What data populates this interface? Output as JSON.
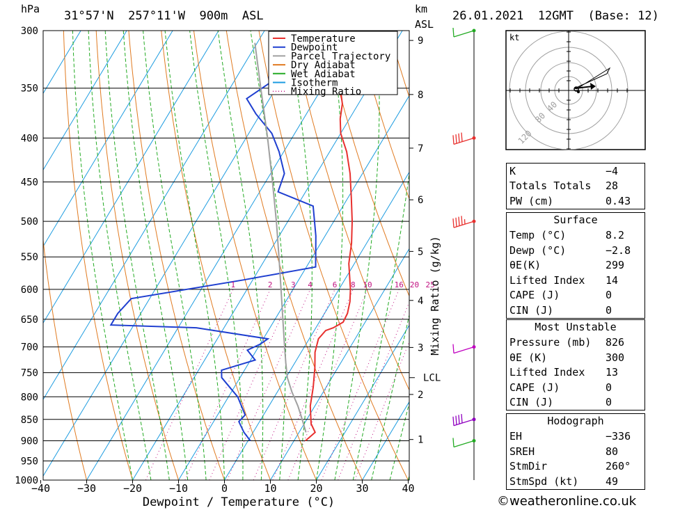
{
  "header": {
    "location": "31°57'N  257°11'W  900m  ASL",
    "datetime": "26.01.2021  12GMT  (Base: 12)",
    "hpa_label": "hPa",
    "km_label": "km",
    "asl_label": "ASL"
  },
  "chart_data": {
    "type": "skew-t",
    "xlabel": "Dewpoint / Temperature (°C)",
    "ylabel_right": "Mixing Ratio (g/kg)",
    "x_ticks": [
      -40,
      -30,
      -20,
      -10,
      0,
      10,
      20,
      30,
      40
    ],
    "x_tick_labels": [
      "−40",
      "−30",
      "−20",
      "−10",
      "0",
      "10",
      "20",
      "30",
      "40"
    ],
    "p_levels": [
      300,
      350,
      400,
      450,
      500,
      550,
      600,
      650,
      700,
      750,
      800,
      850,
      900,
      950,
      1000
    ],
    "km_ticks": [
      {
        "km": 1,
        "p": 897
      },
      {
        "km": 2,
        "p": 795
      },
      {
        "km": 3,
        "p": 701
      },
      {
        "km": 4,
        "p": 618
      },
      {
        "km": 5,
        "p": 542
      },
      {
        "km": 6,
        "p": 472
      },
      {
        "km": 7,
        "p": 411
      },
      {
        "km": 8,
        "p": 356
      },
      {
        "km": 9,
        "p": 308
      }
    ],
    "lcl": {
      "label": "LCL",
      "p": 760
    },
    "mixing_ratio_labels": [
      "1",
      "2",
      "3",
      "4",
      "6",
      "8",
      "10",
      "16",
      "20",
      "25"
    ],
    "mixing_ratio_values": [
      1,
      2,
      3,
      4,
      6,
      8,
      10,
      16,
      20,
      25
    ],
    "legend": [
      {
        "name": "Temperature",
        "color": "#e8302e",
        "dash": false
      },
      {
        "name": "Dewpoint",
        "color": "#1f3fd0",
        "dash": false
      },
      {
        "name": "Parcel Trajectory",
        "color": "#a0a0a0",
        "dash": false
      },
      {
        "name": "Dry Adiabat",
        "color": "#e07a20",
        "dash": false
      },
      {
        "name": "Wet Adiabat",
        "color": "#22aa22",
        "dash": false
      },
      {
        "name": "Isotherm",
        "color": "#1b9be0",
        "dash": false
      },
      {
        "name": "Mixing Ratio",
        "color": "#c01080",
        "dash": true
      }
    ],
    "series": [
      {
        "name": "Temperature",
        "points": [
          [
            900,
            12.5
          ],
          [
            880,
            13.5
          ],
          [
            860,
            11.5
          ],
          [
            820,
            9.0
          ],
          [
            780,
            7.2
          ],
          [
            740,
            5.0
          ],
          [
            710,
            3.0
          ],
          [
            685,
            2.0
          ],
          [
            670,
            2.5
          ],
          [
            665,
            3.8
          ],
          [
            655,
            5.2
          ],
          [
            640,
            5.0
          ],
          [
            620,
            4.0
          ],
          [
            600,
            2.5
          ],
          [
            560,
            -1.2
          ],
          [
            530,
            -3.3
          ],
          [
            500,
            -6.0
          ],
          [
            470,
            -9.2
          ],
          [
            440,
            -12.7
          ],
          [
            415,
            -16.3
          ],
          [
            395,
            -20.0
          ],
          [
            380,
            -22.0
          ],
          [
            365,
            -23.5
          ],
          [
            350,
            -26.0
          ],
          [
            330,
            -29.0
          ],
          [
            310,
            -32.5
          ],
          [
            300,
            -34.0
          ]
        ]
      },
      {
        "name": "Dewpoint",
        "points": [
          [
            900,
            0.5
          ],
          [
            880,
            -2.0
          ],
          [
            855,
            -4.5
          ],
          [
            840,
            -4.0
          ],
          [
            800,
            -8.0
          ],
          [
            760,
            -14.0
          ],
          [
            745,
            -15.0
          ],
          [
            725,
            -9.0
          ],
          [
            706,
            -12.0
          ],
          [
            695,
            -10.0
          ],
          [
            685,
            -9.0
          ],
          [
            665,
            -26.0
          ],
          [
            660,
            -45.0
          ],
          [
            640,
            -45.0
          ],
          [
            615,
            -44.0
          ],
          [
            585,
            -22.0
          ],
          [
            565,
            -8.0
          ],
          [
            520,
            -12.0
          ],
          [
            480,
            -16.5
          ],
          [
            462,
            -26.0
          ],
          [
            440,
            -27.0
          ],
          [
            415,
            -31.0
          ],
          [
            395,
            -35.0
          ],
          [
            375,
            -41.0
          ],
          [
            360,
            -45.0
          ],
          [
            345,
            -42.0
          ],
          [
            340,
            -43.0
          ],
          [
            325,
            -44.0
          ],
          [
            310,
            -44.5
          ],
          [
            300,
            -46.0
          ]
        ]
      },
      {
        "name": "Parcel Trajectory",
        "points": [
          [
            880,
            11.5
          ],
          [
            850,
            9.0
          ],
          [
            820,
            6.3
          ],
          [
            790,
            3.2
          ],
          [
            760,
            0.3
          ],
          [
            730,
            -2.0
          ],
          [
            700,
            -4.3
          ],
          [
            650,
            -8.3
          ],
          [
            600,
            -12.6
          ],
          [
            550,
            -17.3
          ],
          [
            500,
            -22.5
          ],
          [
            450,
            -28.5
          ],
          [
            400,
            -35.3
          ],
          [
            350,
            -43.3
          ],
          [
            310,
            -50.5
          ]
        ]
      }
    ],
    "wind_barbs": [
      {
        "p": 300,
        "color": "#22aa22",
        "flags": 0,
        "full": 1,
        "half": 0
      },
      {
        "p": 400,
        "color": "#e8302e",
        "flags": 0,
        "full": 4,
        "half": 0
      },
      {
        "p": 500,
        "color": "#e8302e",
        "flags": 0,
        "full": 4,
        "half": 1
      },
      {
        "p": 700,
        "color": "#c000c0",
        "flags": 0,
        "full": 1,
        "half": 0
      },
      {
        "p": 850,
        "color": "#9000c0",
        "flags": 0,
        "full": 4,
        "half": 0
      },
      {
        "p": 900,
        "color": "#22aa22",
        "flags": 0,
        "full": 1,
        "half": 0
      }
    ]
  },
  "hodograph": {
    "unit_label": "kt",
    "ring_labels": [
      "40",
      "80",
      "120"
    ]
  },
  "indices": [
    {
      "label": "K",
      "value": "−4"
    },
    {
      "label": "Totals Totals",
      "value": "28"
    },
    {
      "label": "PW (cm)",
      "value": "0.43"
    }
  ],
  "surface": {
    "title": "Surface",
    "rows": [
      {
        "label": "Temp (°C)",
        "value": "8.2"
      },
      {
        "label": "Dewp (°C)",
        "value": "−2.8"
      },
      {
        "label": "θE(K)",
        "value": "299"
      },
      {
        "label": "Lifted Index",
        "value": "14"
      },
      {
        "label": "CAPE (J)",
        "value": "0"
      },
      {
        "label": "CIN (J)",
        "value": "0"
      }
    ]
  },
  "most_unstable": {
    "title": "Most Unstable",
    "rows": [
      {
        "label": "Pressure (mb)",
        "value": "826"
      },
      {
        "label": "θE (K)",
        "value": "300"
      },
      {
        "label": "Lifted Index",
        "value": "13"
      },
      {
        "label": "CAPE (J)",
        "value": "0"
      },
      {
        "label": "CIN (J)",
        "value": "0"
      }
    ]
  },
  "hodograph_params": {
    "title": "Hodograph",
    "rows": [
      {
        "label": "EH",
        "value": "−336"
      },
      {
        "label": "SREH",
        "value": "80"
      },
      {
        "label": "StmDir",
        "value": "260°"
      },
      {
        "label": "StmSpd (kt)",
        "value": "49"
      }
    ]
  },
  "footer": {
    "copyright": "©weatheronline.co.uk"
  }
}
